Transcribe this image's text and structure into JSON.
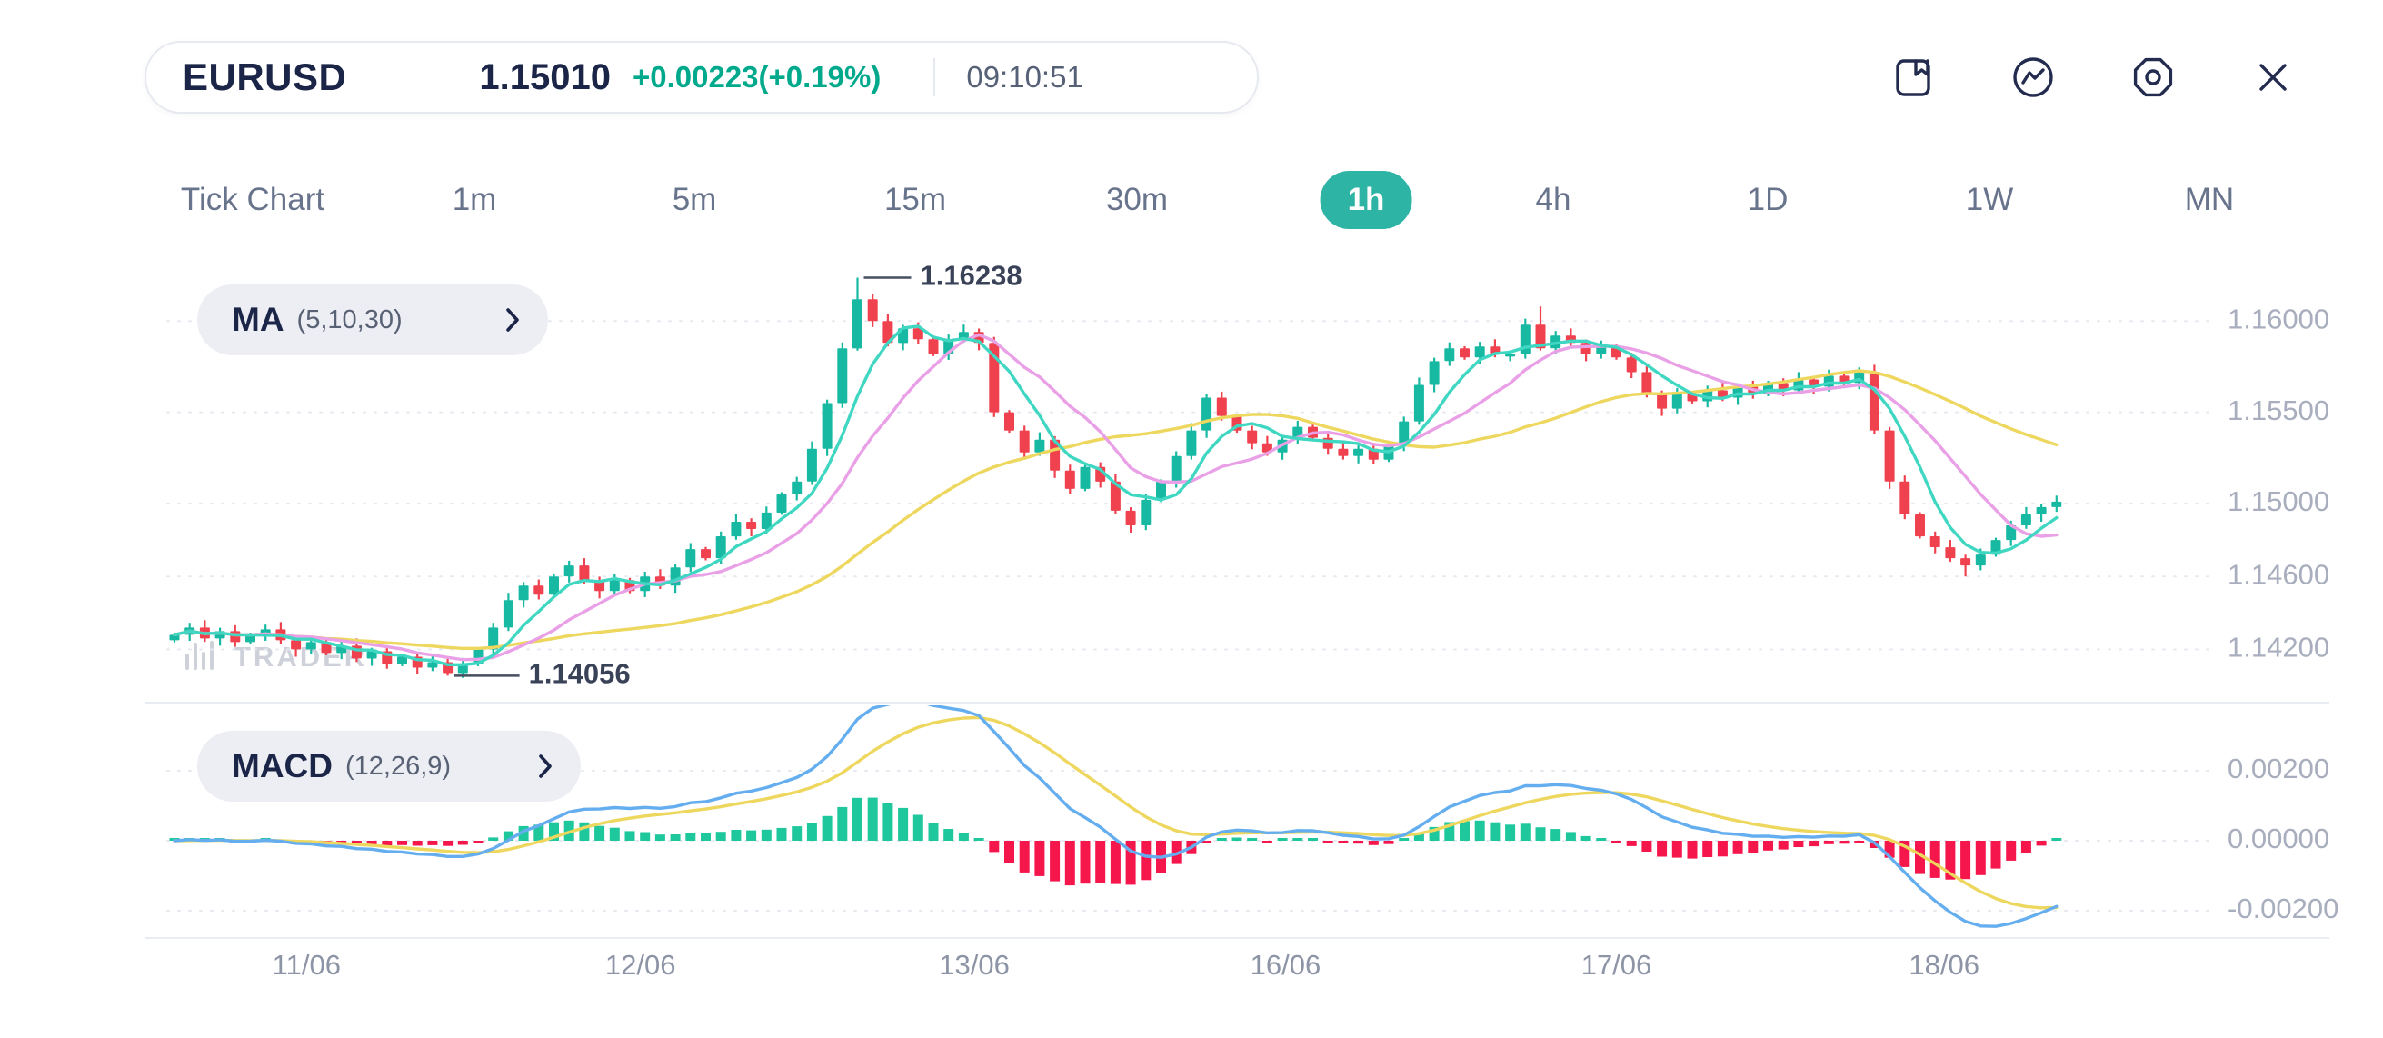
{
  "header": {
    "symbol": "EURUSD",
    "price": "1.15010",
    "change": "+0.00223(+0.19%)",
    "time": "09:10:51",
    "icons": [
      "bookmark",
      "line-chart",
      "settings",
      "close"
    ]
  },
  "timeframes": {
    "items": [
      "Tick Chart",
      "1m",
      "5m",
      "15m",
      "30m",
      "1h",
      "4h",
      "1D",
      "1W",
      "MN"
    ],
    "selected": "1h"
  },
  "indicator_pills": {
    "ma_label": "MA",
    "ma_params": "(5,10,30)",
    "macd_label": "MACD",
    "macd_params": "(12,26,9)"
  },
  "watermark": "TRADER",
  "chart_data": {
    "type": "candlestick",
    "symbol": "EURUSD",
    "timeframe": "1h",
    "first_open": 1.1425,
    "closes": [
      1.1428,
      1.1432,
      1.1426,
      1.143,
      1.1424,
      1.1428,
      1.1431,
      1.1425,
      1.142,
      1.1424,
      1.1418,
      1.1422,
      1.1415,
      1.1419,
      1.1412,
      1.1416,
      1.141,
      1.1413,
      1.1407,
      1.1412,
      1.142,
      1.1432,
      1.1447,
      1.1455,
      1.145,
      1.146,
      1.1466,
      1.1458,
      1.1452,
      1.1458,
      1.1452,
      1.146,
      1.1455,
      1.1465,
      1.1475,
      1.147,
      1.1482,
      1.149,
      1.1486,
      1.1495,
      1.1505,
      1.1512,
      1.153,
      1.1555,
      1.1585,
      1.1612,
      1.16,
      1.1588,
      1.1596,
      1.159,
      1.1582,
      1.159,
      1.1594,
      1.1588,
      1.155,
      1.154,
      1.1528,
      1.1535,
      1.1518,
      1.1508,
      1.152,
      1.1512,
      1.1496,
      1.1488,
      1.1502,
      1.1512,
      1.1526,
      1.154,
      1.1558,
      1.1548,
      1.154,
      1.1533,
      1.1528,
      1.1535,
      1.1542,
      1.1536,
      1.153,
      1.1526,
      1.153,
      1.1524,
      1.1532,
      1.1545,
      1.1565,
      1.1578,
      1.1585,
      1.158,
      1.1586,
      1.1582,
      1.1582,
      1.1598,
      1.1585,
      1.1592,
      1.1588,
      1.1582,
      1.1586,
      1.158,
      1.1572,
      1.156,
      1.1552,
      1.156,
      1.1556,
      1.1562,
      1.1558,
      1.1564,
      1.156,
      1.1566,
      1.1562,
      1.1568,
      1.1564,
      1.157,
      1.1566,
      1.1572,
      1.154,
      1.1512,
      1.1494,
      1.1482,
      1.1476,
      1.147,
      1.1466,
      1.1472,
      1.148,
      1.1488,
      1.1494,
      1.1498,
      1.1501
    ],
    "wick_overrides": {
      "18": {
        "low": 1.14056
      },
      "45": {
        "high": 1.16238
      },
      "90": {
        "high": 1.1608
      },
      "118": {
        "low": 1.146
      }
    },
    "annotations": [
      {
        "type": "high",
        "index": 45,
        "label": "1.16238",
        "value": 1.16238
      },
      {
        "type": "low",
        "index": 18,
        "label": "1.14056",
        "value": 1.14056
      }
    ],
    "y_axis": {
      "labels": [
        {
          "text": "1.16000",
          "value": 1.16
        },
        {
          "text": "1.15500",
          "value": 1.155
        },
        {
          "text": "1.15000",
          "value": 1.15
        },
        {
          "text": "1.14600",
          "value": 1.146
        },
        {
          "text": "1.14200",
          "value": 1.142
        }
      ]
    },
    "x_axis": {
      "labels": [
        {
          "text": "11/06",
          "index": 8.7
        },
        {
          "text": "12/06",
          "index": 30.7
        },
        {
          "text": "13/06",
          "index": 52.7
        },
        {
          "text": "16/06",
          "index": 73.2
        },
        {
          "text": "17/06",
          "index": 95
        },
        {
          "text": "18/06",
          "index": 116.6
        }
      ]
    },
    "indicators": {
      "ma": {
        "name": "MA",
        "periods": [
          5,
          10,
          30
        ],
        "colors": [
          "#40d7c2",
          "#e9a0e6",
          "#edd75e"
        ]
      },
      "macd": {
        "name": "MACD",
        "fast": 12,
        "slow": 26,
        "signal": 9,
        "line_color": "#64aef0",
        "signal_color": "#edd75e",
        "y_axis": [
          {
            "text": "0.00200",
            "value": 0.002
          },
          {
            "text": "0.00000",
            "value": 0
          },
          {
            "text": "-0.00200",
            "value": -0.002
          }
        ]
      }
    },
    "colors": {
      "up": "#17b9a2",
      "down": "#f0414f",
      "hist_up": "#1fc79c",
      "hist_down": "#f5164c",
      "grid": "#e6e9f0",
      "separator": "#e9ecf2",
      "axis_text": "#a8aebd",
      "date_text": "#8d94a6",
      "annotation": "#3a4257"
    }
  }
}
